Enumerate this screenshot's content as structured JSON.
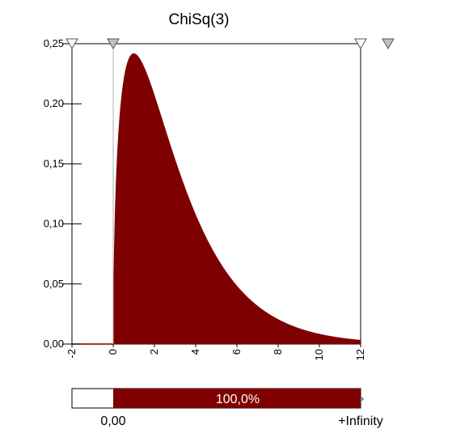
{
  "chart_data": {
    "type": "area",
    "title": "ChiSq(3)",
    "distribution": "chi-squared",
    "degrees_of_freedom": 3,
    "xlim": [
      -2,
      12
    ],
    "ylim": [
      0,
      0.25
    ],
    "x_ticks": [
      -2,
      0,
      2,
      4,
      6,
      8,
      10,
      12
    ],
    "x_tick_labels": [
      "-2",
      "0",
      "2",
      "4",
      "6",
      "8",
      "10",
      "12"
    ],
    "y_ticks": [
      0,
      0.05,
      0.1,
      0.15,
      0.2,
      0.25
    ],
    "y_tick_labels": [
      "0,00",
      "0,05",
      "0,10",
      "0,15",
      "0,20",
      "0,25"
    ],
    "fill_color": "#7f0000",
    "grid": false,
    "delimiters": {
      "left_value_label": "0,00",
      "right_value_label": "+Infinity",
      "probability_label": "100,0%",
      "probability": 1.0
    }
  },
  "colors": {
    "fill": "#7f0000",
    "axis": "#000000",
    "marker_fill": "#c0c0c0"
  }
}
